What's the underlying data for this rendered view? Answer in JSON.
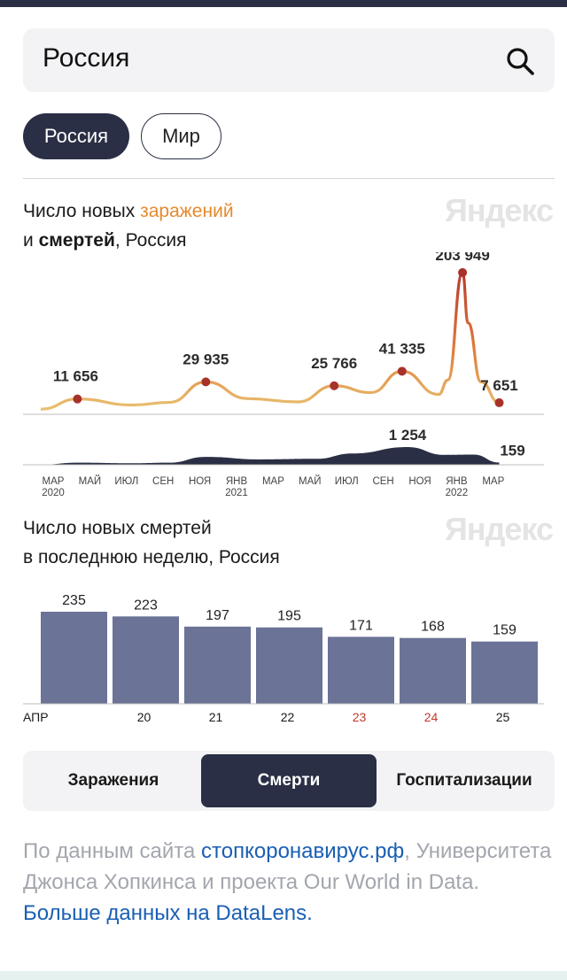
{
  "search": {
    "query": "Россия"
  },
  "region_tabs": {
    "active": "Россия",
    "other": "Мир"
  },
  "chart1": {
    "title_line1_pre": "Число новых ",
    "title_line1_accent": "заражений",
    "title_line2_pre": "и ",
    "title_line2_bold": "смертей",
    "title_line2_post": ", Россия",
    "watermark": "Яндекс"
  },
  "chart2": {
    "title_line1": "Число новых смертей",
    "title_line2": "в последнюю неделю, Россия",
    "watermark": "Яндекс"
  },
  "chart_data": [
    {
      "type": "line",
      "series": [
        {
          "name": "заражений",
          "color": "#e8b866",
          "peak_color": "#b73a2e",
          "labeled_points": [
            {
              "date": "2020-05",
              "value": 11656,
              "label": "11 656"
            },
            {
              "date": "2020-12",
              "value": 29935,
              "label": "29 935"
            },
            {
              "date": "2021-07",
              "value": 25766,
              "label": "25 766"
            },
            {
              "date": "2021-10",
              "value": 41335,
              "label": "41 335"
            },
            {
              "date": "2022-02",
              "value": 203949,
              "label": "203 949"
            },
            {
              "date": "2022-04",
              "value": 7651,
              "label": "7 651"
            }
          ]
        },
        {
          "name": "смертей",
          "color": "#2a2f45",
          "labeled_points": [
            {
              "date": "2021-11",
              "value": 1254,
              "label": "1 254"
            },
            {
              "date": "2022-04",
              "value": 159,
              "label": "159"
            }
          ]
        }
      ],
      "x_ticks": [
        {
          "line1": "МАР",
          "line2": "2020"
        },
        {
          "line1": "МАЙ",
          "line2": ""
        },
        {
          "line1": "ИЮЛ",
          "line2": ""
        },
        {
          "line1": "СЕН",
          "line2": ""
        },
        {
          "line1": "НОЯ",
          "line2": ""
        },
        {
          "line1": "ЯНВ",
          "line2": "2021"
        },
        {
          "line1": "МАР",
          "line2": ""
        },
        {
          "line1": "МАЙ",
          "line2": ""
        },
        {
          "line1": "ИЮЛ",
          "line2": ""
        },
        {
          "line1": "СЕН",
          "line2": ""
        },
        {
          "line1": "НОЯ",
          "line2": ""
        },
        {
          "line1": "ЯНВ",
          "line2": "2022"
        },
        {
          "line1": "МАР",
          "line2": ""
        }
      ]
    },
    {
      "type": "bar",
      "color": "#6b7396",
      "values": [
        235,
        223,
        197,
        195,
        171,
        168,
        159
      ],
      "data_labels": [
        "235",
        "223",
        "197",
        "195",
        "171",
        "168",
        "159"
      ],
      "x_ticks": [
        {
          "text": "АПР",
          "color": "#1a1a1a"
        },
        {
          "text": "20",
          "color": "#1a1a1a"
        },
        {
          "text": "21",
          "color": "#1a1a1a"
        },
        {
          "text": "22",
          "color": "#1a1a1a"
        },
        {
          "text": "23",
          "color": "#c0392b"
        },
        {
          "text": "24",
          "color": "#c0392b"
        },
        {
          "text": "25",
          "color": "#1a1a1a"
        }
      ],
      "ylim": [
        0,
        250
      ]
    }
  ],
  "metric_tabs": [
    {
      "label": "Заражения",
      "active": false
    },
    {
      "label": "Смерти",
      "active": true
    },
    {
      "label": "Госпитализации",
      "active": false
    }
  ],
  "source": {
    "pre": "По данным сайта ",
    "link1": "стопкоронавирус.рф",
    "mid": ", Университета Джонса Хопкинса и проекта Our World in Data. ",
    "link2": "Больше данных на DataLens."
  }
}
